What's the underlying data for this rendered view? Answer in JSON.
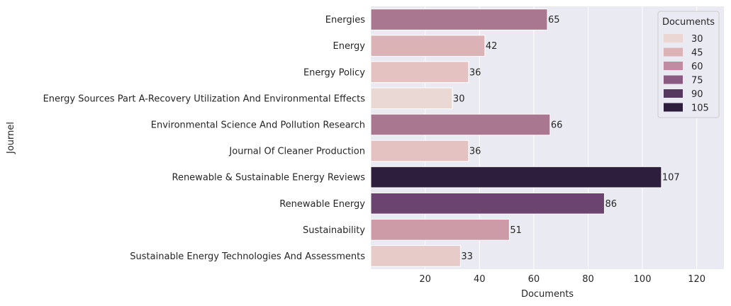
{
  "chart_data": {
    "type": "bar",
    "orientation": "horizontal",
    "xlabel": "Documents",
    "ylabel": "Journel",
    "xlim": [
      0,
      130
    ],
    "xticks": [
      20,
      40,
      60,
      80,
      100,
      120
    ],
    "grid": true,
    "categories": [
      "Energies",
      "Energy",
      "Energy Policy",
      "Energy Sources Part A-Recovery Utilization And Environmental Effects",
      "Environmental Science And Pollution Research",
      "Journal Of Cleaner Production",
      "Renewable & Sustainable Energy Reviews",
      "Renewable Energy",
      "Sustainability",
      "Sustainable Energy Technologies And Assessments"
    ],
    "values": [
      65,
      42,
      36,
      30,
      66,
      36,
      107,
      86,
      51,
      33
    ],
    "data_labels": [
      "65",
      "42",
      "36",
      "30",
      "66",
      "36",
      "107",
      "86",
      "51",
      "33"
    ],
    "bar_colors": [
      "#a9778f",
      "#dbb3b6",
      "#e3c2c1",
      "#ead8d5",
      "#a9778f",
      "#e3c2c1",
      "#2d1e3e",
      "#6b4570",
      "#cd9ba7",
      "#e6cbc8"
    ],
    "legend": {
      "title": "Documents",
      "placement": "top-right",
      "entries": [
        {
          "label": "30",
          "color": "#ead6d2"
        },
        {
          "label": "45",
          "color": "#dbb3b6"
        },
        {
          "label": "60",
          "color": "#bf8ca1"
        },
        {
          "label": "75",
          "color": "#8a5a83"
        },
        {
          "label": "90",
          "color": "#56385e"
        },
        {
          "label": "105",
          "color": "#2d1e3e"
        }
      ]
    },
    "background": "#eaeaf2",
    "grid_color": "#ffffff"
  }
}
